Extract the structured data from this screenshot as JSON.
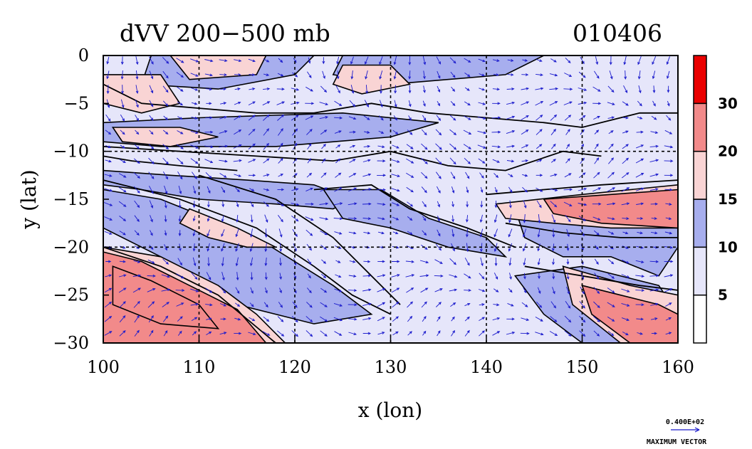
{
  "colors": {
    "shade_levels": [
      "#ffffff",
      "#e6e6fa",
      "#a7aeee",
      "#f9d4d4",
      "#f28a8a",
      "#ea0000"
    ],
    "contour": "#000000",
    "vector": "#1a1acc",
    "grid": "#000000"
  },
  "chart_data": {
    "type": "heatmap",
    "title": "dVV 200−500 mb",
    "date_label": "010406",
    "xlabel": "x (lon)",
    "ylabel": "y (lat)",
    "xlim": [
      100,
      160
    ],
    "ylim": [
      -30,
      0
    ],
    "x_ticks": [
      "100",
      "110",
      "120",
      "130",
      "140",
      "150",
      "160"
    ],
    "y_ticks": [
      "0",
      "−5",
      "−10",
      "−15",
      "−20",
      "−25",
      "−30"
    ],
    "grid": true,
    "grid_x": [
      110,
      120,
      130,
      140,
      150
    ],
    "grid_y": [
      -10,
      -20
    ],
    "colorbar": {
      "position": "right",
      "levels": [
        0,
        5,
        10,
        15,
        20,
        30,
        40
      ],
      "tick_labels": [
        "5",
        "10",
        "15",
        "20",
        "30"
      ]
    },
    "regions": [
      {
        "name": "band-NW",
        "level": 1,
        "points": [
          [
            100,
            0
          ],
          [
            160,
            0
          ],
          [
            160,
            -30
          ],
          [
            100,
            -30
          ]
        ]
      },
      {
        "name": "band-strong-north",
        "level": 2,
        "points": [
          [
            100,
            -12
          ],
          [
            107,
            -12.5
          ],
          [
            115,
            -13
          ],
          [
            122,
            -13.5
          ],
          [
            126,
            -15
          ],
          [
            124,
            -16
          ],
          [
            118,
            -15.5
          ],
          [
            110,
            -15
          ],
          [
            104,
            -14
          ],
          [
            100,
            -13.5
          ]
        ]
      },
      {
        "name": "band-12N-east",
        "level": 2,
        "points": [
          [
            100,
            -7
          ],
          [
            110,
            -6.5
          ],
          [
            125,
            -6
          ],
          [
            135,
            -7
          ],
          [
            130,
            -8.5
          ],
          [
            118,
            -9.5
          ],
          [
            106,
            -9.5
          ],
          [
            100,
            -9
          ]
        ]
      },
      {
        "name": "band-top",
        "level": 2,
        "points": [
          [
            105,
            0
          ],
          [
            122,
            0
          ],
          [
            120,
            -2
          ],
          [
            112,
            -3.5
          ],
          [
            104,
            -3
          ]
        ]
      },
      {
        "name": "band-top2",
        "level": 2,
        "points": [
          [
            125,
            0
          ],
          [
            146,
            0
          ],
          [
            142,
            -2
          ],
          [
            130,
            -3
          ],
          [
            124,
            -2
          ]
        ]
      },
      {
        "name": "band-diag",
        "level": 2,
        "points": [
          [
            100,
            -14
          ],
          [
            106,
            -15
          ],
          [
            116,
            -19
          ],
          [
            124,
            -24
          ],
          [
            128,
            -27
          ],
          [
            122,
            -28
          ],
          [
            114,
            -26
          ],
          [
            106,
            -21
          ],
          [
            100,
            -18
          ]
        ]
      },
      {
        "name": "band-se-blue",
        "level": 2,
        "points": [
          [
            143,
            -16
          ],
          [
            160,
            -14
          ],
          [
            160,
            -20
          ],
          [
            158,
            -23
          ],
          [
            153,
            -21
          ],
          [
            148,
            -21
          ],
          [
            144,
            -19
          ]
        ]
      },
      {
        "name": "band-se-blue2",
        "level": 2,
        "points": [
          [
            143,
            -23
          ],
          [
            150,
            -22
          ],
          [
            158,
            -24
          ],
          [
            160,
            -27
          ],
          [
            160,
            -30
          ],
          [
            150,
            -30
          ],
          [
            146,
            -27
          ]
        ]
      },
      {
        "name": "band-central",
        "level": 2,
        "points": [
          [
            123,
            -14
          ],
          [
            129,
            -14
          ],
          [
            134,
            -17
          ],
          [
            140,
            -19
          ],
          [
            142,
            -21
          ],
          [
            136,
            -20
          ],
          [
            130,
            -18
          ],
          [
            125,
            -17
          ]
        ]
      },
      {
        "name": "pink-nw",
        "level": 3,
        "points": [
          [
            100,
            -2
          ],
          [
            106,
            -2
          ],
          [
            108,
            -5
          ],
          [
            104,
            -6
          ],
          [
            100,
            -5
          ]
        ]
      },
      {
        "name": "pink-west",
        "level": 3,
        "points": [
          [
            101,
            -7.5
          ],
          [
            108,
            -7.5
          ],
          [
            112,
            -8.5
          ],
          [
            107,
            -9.5
          ],
          [
            102,
            -9
          ]
        ]
      },
      {
        "name": "pink-north",
        "level": 3,
        "points": [
          [
            125,
            -1
          ],
          [
            130,
            -1
          ],
          [
            132,
            -3
          ],
          [
            127,
            -4
          ],
          [
            124,
            -3
          ]
        ]
      },
      {
        "name": "pink-top-left",
        "level": 3,
        "points": [
          [
            107,
            0
          ],
          [
            117,
            0
          ],
          [
            116,
            -2
          ],
          [
            109,
            -2.5
          ]
        ]
      },
      {
        "name": "pink-diag",
        "level": 3,
        "points": [
          [
            109,
            -16
          ],
          [
            114,
            -18
          ],
          [
            118,
            -20
          ],
          [
            115,
            -20
          ],
          [
            111,
            -19
          ],
          [
            108,
            -17.5
          ]
        ]
      },
      {
        "name": "pink-east",
        "level": 3,
        "points": [
          [
            141,
            -15.5
          ],
          [
            150,
            -14.5
          ],
          [
            160,
            -13.5
          ],
          [
            160,
            -18
          ],
          [
            153,
            -18
          ],
          [
            147,
            -17.5
          ],
          [
            142,
            -17
          ]
        ]
      },
      {
        "name": "pink-se",
        "level": 3,
        "points": [
          [
            148,
            -22
          ],
          [
            155,
            -24
          ],
          [
            160,
            -25
          ],
          [
            160,
            -30
          ],
          [
            154,
            -30
          ],
          [
            149,
            -26
          ]
        ]
      },
      {
        "name": "pink-sw",
        "level": 3,
        "points": [
          [
            100,
            -20
          ],
          [
            106,
            -21
          ],
          [
            112,
            -24
          ],
          [
            116,
            -27
          ],
          [
            119,
            -30
          ],
          [
            100,
            -30
          ]
        ]
      },
      {
        "name": "red-east",
        "level": 4,
        "points": [
          [
            146,
            -15
          ],
          [
            153,
            -14.5
          ],
          [
            160,
            -14
          ],
          [
            160,
            -18
          ],
          [
            152,
            -17.5
          ],
          [
            147,
            -16.5
          ]
        ]
      },
      {
        "name": "red-se",
        "level": 4,
        "points": [
          [
            150,
            -24
          ],
          [
            154,
            -25
          ],
          [
            158,
            -26
          ],
          [
            160,
            -27
          ],
          [
            160,
            -30
          ],
          [
            155,
            -30
          ],
          [
            151,
            -27
          ]
        ]
      },
      {
        "name": "red-sw",
        "level": 4,
        "points": [
          [
            100,
            -20.5
          ],
          [
            104,
            -21.5
          ],
          [
            109,
            -24
          ],
          [
            114,
            -26.5
          ],
          [
            117,
            -30
          ],
          [
            100,
            -30
          ]
        ]
      },
      {
        "name": "red-sw-core",
        "level": 4,
        "points": [
          [
            101,
            -22
          ],
          [
            105,
            -23.5
          ],
          [
            110,
            -26
          ],
          [
            112,
            -28.5
          ],
          [
            106,
            -28
          ],
          [
            101,
            -26
          ]
        ]
      }
    ],
    "contour_lines": [
      {
        "name": "coast-north",
        "points": [
          [
            100,
            -3
          ],
          [
            104,
            -5
          ],
          [
            110,
            -5.5
          ],
          [
            116,
            -6
          ],
          [
            122,
            -6
          ],
          [
            128,
            -5
          ],
          [
            134,
            -6
          ],
          [
            140,
            -6.5
          ],
          [
            146,
            -7
          ],
          [
            150,
            -7.5
          ],
          [
            156,
            -6
          ],
          [
            160,
            -6
          ]
        ]
      },
      {
        "name": "coast-java",
        "points": [
          [
            100,
            -9.5
          ],
          [
            108,
            -10
          ],
          [
            116,
            -10.5
          ],
          [
            124,
            -11
          ],
          [
            130,
            -10
          ],
          [
            136,
            -11.5
          ],
          [
            142,
            -12
          ],
          [
            148,
            -10
          ],
          [
            152,
            -10.5
          ]
        ]
      },
      {
        "name": "contour-diag1",
        "points": [
          [
            100,
            -13
          ],
          [
            108,
            -15
          ],
          [
            116,
            -18
          ],
          [
            122,
            -22
          ],
          [
            126,
            -25
          ],
          [
            130,
            -27
          ]
        ]
      },
      {
        "name": "contour-diag2",
        "points": [
          [
            110,
            -12.5
          ],
          [
            118,
            -15
          ],
          [
            124,
            -19
          ],
          [
            128,
            -23
          ],
          [
            131,
            -26
          ]
        ]
      },
      {
        "name": "contour-sw",
        "points": [
          [
            100,
            -20
          ],
          [
            106,
            -22
          ],
          [
            112,
            -25
          ],
          [
            118,
            -30
          ]
        ]
      },
      {
        "name": "contour-se",
        "points": [
          [
            144,
            -22
          ],
          [
            150,
            -23
          ],
          [
            156,
            -24
          ],
          [
            160,
            -24.5
          ]
        ]
      },
      {
        "name": "contour-east",
        "points": [
          [
            140,
            -14.5
          ],
          [
            146,
            -14
          ],
          [
            152,
            -13.5
          ],
          [
            160,
            -13
          ]
        ]
      },
      {
        "name": "contour-east2",
        "points": [
          [
            142,
            -17.5
          ],
          [
            148,
            -18.5
          ],
          [
            154,
            -19
          ],
          [
            160,
            -19
          ]
        ]
      },
      {
        "name": "contour-central",
        "points": [
          [
            122,
            -14
          ],
          [
            128,
            -13.5
          ],
          [
            132,
            -16
          ],
          [
            138,
            -18
          ],
          [
            143,
            -20
          ]
        ]
      },
      {
        "name": "contour-west-island",
        "points": [
          [
            100,
            -10.5
          ],
          [
            103,
            -11
          ],
          [
            108,
            -11.5
          ],
          [
            114,
            -12
          ]
        ]
      }
    ],
    "max_vector": {
      "value": "0.400E+02",
      "label": "MAXIMUM VECTOR"
    }
  }
}
